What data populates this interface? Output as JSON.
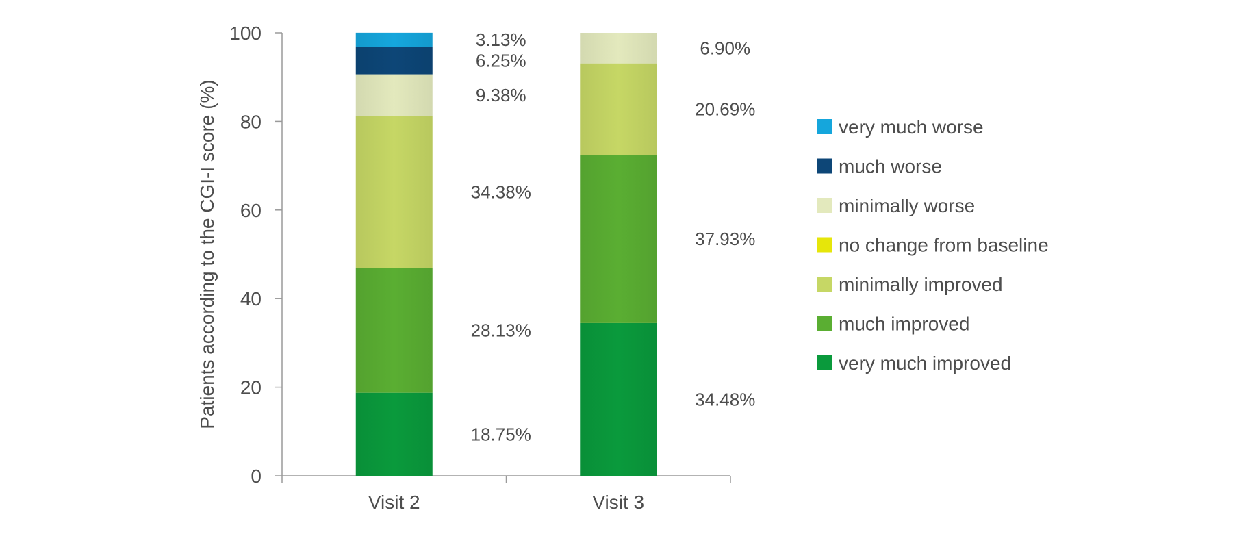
{
  "chart_data": {
    "type": "bar",
    "stacked": true,
    "xlabel": "",
    "ylabel": "Patients according to the CGI-I score (%)",
    "ylim": [
      0,
      100
    ],
    "yticks": [
      "0",
      "20",
      "40",
      "60",
      "80",
      "100"
    ],
    "categories": [
      "Visit 2",
      "Visit 3"
    ],
    "grid": false,
    "legend_position": "right",
    "series": [
      {
        "name": "very much improved",
        "color": "#0a9a3c",
        "values": [
          18.75,
          34.48
        ],
        "labels": [
          "18.75%",
          "34.48%"
        ]
      },
      {
        "name": "much improved",
        "color": "#5aae32",
        "values": [
          28.13,
          37.93
        ],
        "labels": [
          "28.13%",
          "37.93%"
        ]
      },
      {
        "name": "minimally improved",
        "color": "#c6d765",
        "values": [
          34.38,
          20.69
        ],
        "labels": [
          "34.38%",
          "20.69%"
        ]
      },
      {
        "name": "no change from baseline",
        "color": "#e6e60a",
        "values": [
          0,
          0
        ],
        "labels": [
          "",
          ""
        ]
      },
      {
        "name": "minimally worse",
        "color": "#e3e9bd",
        "values": [
          9.38,
          6.9
        ],
        "labels": [
          "9.38%",
          "6.90%"
        ]
      },
      {
        "name": "much worse",
        "color": "#0d4677",
        "values": [
          6.25,
          0
        ],
        "labels": [
          "6.25%",
          ""
        ]
      },
      {
        "name": "very much worse",
        "color": "#15a6dc",
        "values": [
          3.13,
          0
        ],
        "labels": [
          "3.13%",
          ""
        ]
      }
    ],
    "legend_order": [
      "very much worse",
      "much worse",
      "minimally worse",
      "no change from baseline",
      "minimally improved",
      "much improved",
      "very much improved"
    ]
  }
}
